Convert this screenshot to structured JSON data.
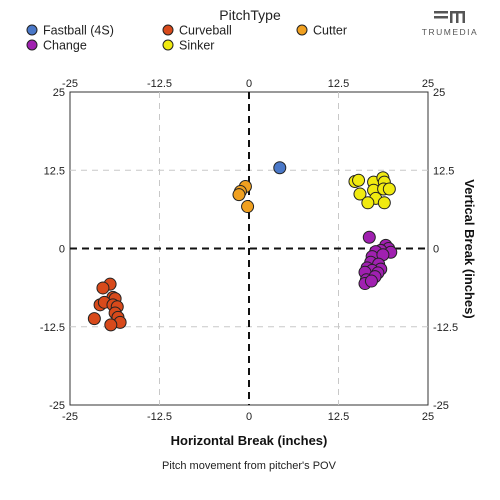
{
  "chart_data": {
    "type": "scatter",
    "legend_title": "PitchType",
    "legend_placement": "top",
    "xlabel": "Horizontal Break (inches)",
    "ylabel": "Vertical Break (inches)",
    "caption": "Pitch movement from pitcher's POV",
    "xlim": [
      -25,
      25
    ],
    "ylim": [
      -25,
      25
    ],
    "x_ticks": [
      -25,
      -12.5,
      0,
      12.5,
      25
    ],
    "y_ticks": [
      -25,
      -12.5,
      0,
      12.5,
      25
    ],
    "x_tick_labels": [
      "-25",
      "-12.5",
      "0",
      "12.5",
      "25"
    ],
    "y_tick_labels": [
      "-25",
      "-12.5",
      "0",
      "12.5",
      "25"
    ],
    "grid": true,
    "zero_lines": "dashed",
    "series": [
      {
        "name": "Fastball (4S)",
        "color": "#4a78c8",
        "points": [
          [
            4.3,
            12.9
          ]
        ]
      },
      {
        "name": "Curveball",
        "color": "#d84a1b",
        "points": [
          [
            -19.4,
            -5.7
          ],
          [
            -19.0,
            -7.8
          ],
          [
            -18.7,
            -8.0
          ],
          [
            -20.4,
            -6.3
          ],
          [
            -20.8,
            -9.0
          ],
          [
            -20.2,
            -8.6
          ],
          [
            -19.0,
            -9.0
          ],
          [
            -18.4,
            -9.3
          ],
          [
            -18.7,
            -10.3
          ],
          [
            -18.3,
            -11.0
          ],
          [
            -21.6,
            -11.2
          ],
          [
            -18.0,
            -11.8
          ],
          [
            -19.3,
            -12.2
          ]
        ]
      },
      {
        "name": "Cutter",
        "color": "#f0a020",
        "points": [
          [
            -0.5,
            9.9
          ],
          [
            -1.2,
            9.1
          ],
          [
            -1.4,
            8.6
          ],
          [
            -0.2,
            6.7
          ]
        ]
      },
      {
        "name": "Change",
        "color": "#a020b0",
        "points": [
          [
            16.8,
            1.8
          ],
          [
            19.1,
            0.5
          ],
          [
            19.5,
            0.0
          ],
          [
            18.4,
            -0.3
          ],
          [
            17.7,
            -0.5
          ],
          [
            19.8,
            -0.6
          ],
          [
            17.2,
            -1.3
          ],
          [
            18.7,
            -1.0
          ],
          [
            17.0,
            -2.2
          ],
          [
            18.1,
            -2.5
          ],
          [
            16.5,
            -3.1
          ],
          [
            18.4,
            -3.3
          ],
          [
            17.2,
            -3.5
          ],
          [
            16.2,
            -3.8
          ],
          [
            18.0,
            -3.9
          ],
          [
            17.6,
            -4.5
          ],
          [
            16.4,
            -5.0
          ],
          [
            16.2,
            -5.6
          ],
          [
            17.1,
            -5.2
          ]
        ]
      },
      {
        "name": "Sinker",
        "color": "#f0ea10",
        "points": [
          [
            14.8,
            10.7
          ],
          [
            15.3,
            10.9
          ],
          [
            17.4,
            10.6
          ],
          [
            18.7,
            11.3
          ],
          [
            18.9,
            10.6
          ],
          [
            17.4,
            9.3
          ],
          [
            18.8,
            9.5
          ],
          [
            19.6,
            9.5
          ],
          [
            15.5,
            8.7
          ],
          [
            17.7,
            8.0
          ],
          [
            16.6,
            7.3
          ],
          [
            18.9,
            7.3
          ]
        ]
      }
    ]
  },
  "brand": {
    "name": "TRUMEDIA"
  }
}
